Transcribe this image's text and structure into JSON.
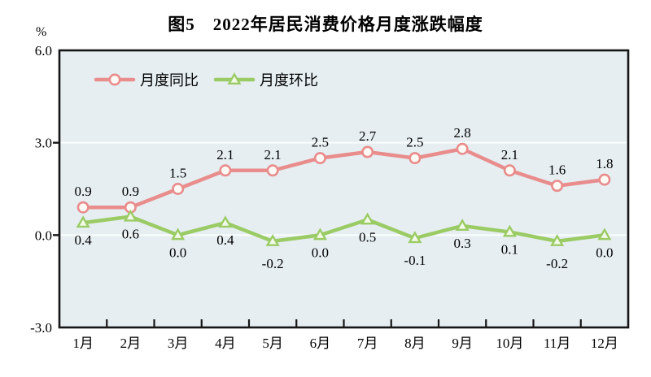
{
  "chart_data": {
    "type": "line",
    "title": "图5　2022年居民消费价格月度涨跌幅度",
    "ylabel": "%",
    "xlabel": "",
    "categories": [
      "1月",
      "2月",
      "3月",
      "4月",
      "5月",
      "6月",
      "7月",
      "8月",
      "9月",
      "10月",
      "11月",
      "12月"
    ],
    "series": [
      {
        "name": "月度同比",
        "marker": "circle",
        "color": "#E98C8C",
        "marker_fill": "#FEF9F5",
        "values": [
          0.9,
          0.9,
          1.5,
          2.1,
          2.1,
          2.5,
          2.7,
          2.5,
          2.8,
          2.1,
          1.6,
          1.8
        ]
      },
      {
        "name": "月度环比",
        "marker": "triangle",
        "color": "#9ACB64",
        "marker_fill": "#F3F9E8",
        "values": [
          0.4,
          0.6,
          0.0,
          0.4,
          -0.2,
          0.0,
          0.5,
          -0.1,
          0.3,
          0.1,
          -0.2,
          0.0
        ]
      }
    ],
    "ylim": [
      -3.0,
      6.0
    ],
    "yticks": [
      6.0,
      3.0,
      0.0,
      -3.0
    ],
    "ytick_labels": [
      "6.0",
      "3.0",
      "0.0",
      "-3.0"
    ],
    "gridlines_at": [
      3.0,
      0.0
    ],
    "grid": true,
    "data_labels": true,
    "legend_position": "top-left-inside",
    "colors": {
      "plot_background": "#E6EEF2",
      "grid_line": "#FBFDFE",
      "axis": "#161616",
      "text": "#000000",
      "page_background": "#FFFFFF"
    }
  }
}
